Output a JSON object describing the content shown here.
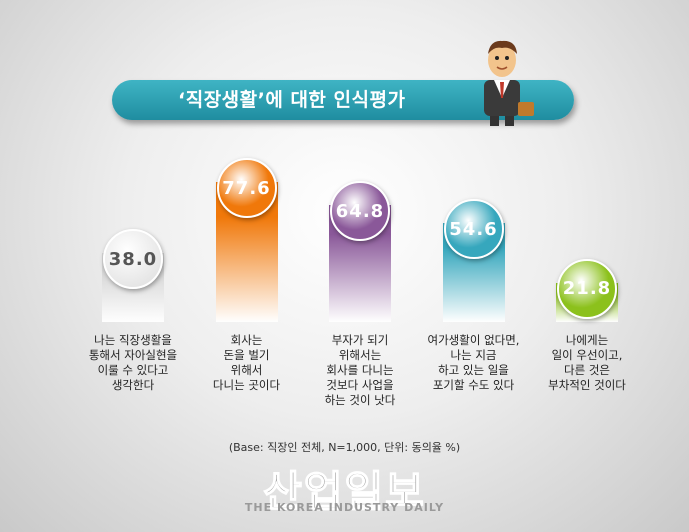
{
  "chart_data": {
    "type": "bar",
    "title": "‘직장생활’에 대한 인식평가",
    "categories": [
      "나는 직장생활을\n통해서 자아실현을\n이룰 수 있다고\n생각한다",
      "회사는\n돈을 벌기\n위해서\n다니는 곳이다",
      "부자가 되기\n위해서는\n회사를  다니는\n것보다 사업을\n하는 것이 낫다",
      "여가생활이 없다면,\n나는 지금\n하고 있는 일을\n포기할 수도 있다",
      "나에게는\n일이 우선이고,\n다른 것은\n부차적인 것이다"
    ],
    "values": [
      38.0,
      77.6,
      64.8,
      54.6,
      21.8
    ],
    "value_labels": [
      "38.0",
      "77.6",
      "64.8",
      "54.6",
      "21.8"
    ],
    "colors": [
      "#d6d6d6",
      "#f0780a",
      "#8a5899",
      "#36a7bd",
      "#8cc11c"
    ],
    "note": "(Base: 직장인 전체, N=1,000, 단위: 동의율 %)",
    "watermark": "산업일보",
    "watermark_subtitle": "THE KOREA INDUSTRY DAILY"
  }
}
